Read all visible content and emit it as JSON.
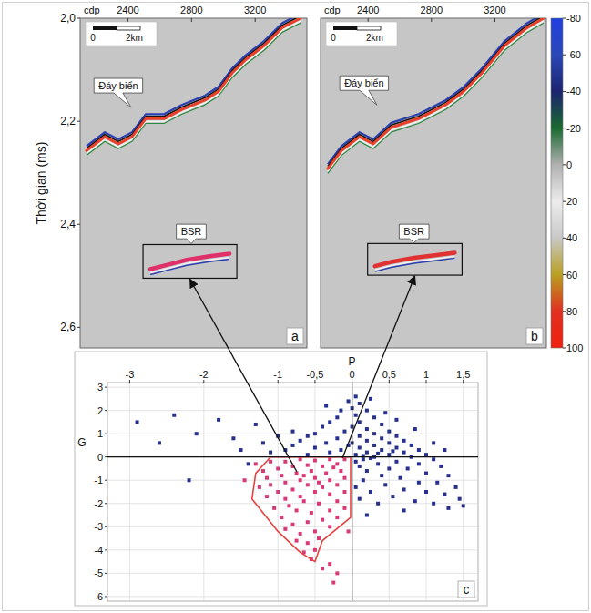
{
  "chart_data": [
    {
      "type": "seismic",
      "label": "a",
      "x_label": "cdp",
      "y_label": "Thời gian (ms)",
      "xlim": [
        2100,
        3525
      ],
      "xticks": [
        2400,
        2800,
        3200
      ],
      "ylim": [
        2.0,
        2.64
      ],
      "yticks": [
        {
          "value": 2.0,
          "label": "2,0"
        },
        {
          "value": 2.2,
          "label": "2,2"
        },
        {
          "value": 2.4,
          "label": "2,4"
        },
        {
          "value": 2.6,
          "label": "2,6"
        }
      ],
      "scale_bar": [
        "0",
        "2km"
      ],
      "seafloor": {
        "label": "Đáy biển",
        "label_x": 2340,
        "label_y": 2.138,
        "color": "#e8402a",
        "x": [
          2140,
          2255,
          2340,
          2426,
          2512,
          2627,
          2741,
          2884,
          2970,
          3056,
          3142,
          3256,
          3371,
          3485
        ],
        "values": [
          2.257,
          2.23,
          2.244,
          2.23,
          2.195,
          2.195,
          2.177,
          2.159,
          2.142,
          2.106,
          2.08,
          2.053,
          2.018,
          2.0
        ]
      },
      "bsr": {
        "label": "BSR",
        "label_x": 2798,
        "label_y": 2.421,
        "color": "#e0306a",
        "x": [
          2541,
          2655,
          2770,
          2913,
          3039
        ],
        "values": [
          2.487,
          2.478,
          2.469,
          2.462,
          2.457
        ]
      }
    },
    {
      "type": "seismic",
      "label": "b",
      "x_label": "cdp",
      "tick_labels": "x",
      "xlim": [
        2100,
        3525
      ],
      "xticks": [
        2400,
        2800,
        3200
      ],
      "ylim": [
        2.0,
        2.64
      ],
      "scale_bar": [
        "0",
        "2km"
      ],
      "seafloor": {
        "label": "Đáy biển",
        "label_x": 2375,
        "label_y": 2.133,
        "color": "#e8402a",
        "x": [
          2146,
          2232,
          2346,
          2432,
          2546,
          2718,
          2890,
          3004,
          3119,
          3262,
          3405,
          3508
        ],
        "values": [
          2.292,
          2.257,
          2.23,
          2.244,
          2.212,
          2.195,
          2.168,
          2.142,
          2.106,
          2.053,
          2.018,
          2.0
        ]
      },
      "bsr": {
        "label": "BSR",
        "label_x": 2690,
        "label_y": 2.421,
        "color": "#e03232",
        "x": [
          2443,
          2546,
          2690,
          2821,
          2947
        ],
        "values": [
          2.481,
          2.473,
          2.465,
          2.46,
          2.455
        ]
      },
      "colorbar": {
        "range": [
          -80,
          100
        ],
        "ticks": [
          -80,
          -60,
          -40,
          -20,
          0,
          20,
          40,
          60,
          80,
          100
        ],
        "colors": [
          "#2040e0",
          "#2a48b8",
          "#1c2470",
          "#1a6a30",
          "#b0b0b0",
          "#ececec",
          "#c8c8c8",
          "#b8a020",
          "#e03020",
          "#f02010"
        ]
      }
    },
    {
      "type": "scatter",
      "label": "c",
      "x_label": "P",
      "y_label": "G",
      "grid": true,
      "xlim": [
        -3.3,
        1.7
      ],
      "xticks": [
        -3,
        -2,
        -1,
        {
          "value": -0.5,
          "label": "-0,5"
        },
        0,
        {
          "value": 0.5,
          "label": "0,5"
        },
        1,
        {
          "value": 1.5,
          "label": "1,5"
        }
      ],
      "ylim": [
        -6.2,
        3.2
      ],
      "yticks": [
        3,
        2,
        1,
        0,
        -1,
        -2,
        -3,
        -4,
        -5,
        -6
      ],
      "series": [
        {
          "type": "scatter",
          "marker": "square",
          "color": "#27308f",
          "x": [
            0.05,
            -0.05,
            0.1,
            0,
            -0.15,
            0.2,
            0.05,
            -0.2,
            0.3,
            0.1,
            -0.3,
            0.4,
            0,
            -0.4,
            0.2,
            0.5,
            -0.1,
            -0.5,
            0.3,
            0.6,
            -0.6,
            0.1,
            -0.2,
            0.4,
            0.7,
            -0.7,
            0.2,
            -0.35,
            0.5,
            0,
            0.8,
            -0.8,
            0.3,
            -0.5,
            0.6,
            0.1,
            -0.15,
            0.9,
            0.4,
            -0.9,
            0.2,
            0.7,
            -0.3,
            0.05,
            1.0,
            0.5,
            -0.6,
            0.3,
            0.8,
            0.15,
            1.1,
            0.6,
            0.35,
            0.9,
            0.1,
            1.2,
            0.5,
            0.75,
            0.2,
            1.0,
            0.4,
            1.3,
            0.65,
            0.15,
            0.9,
            1.15,
            0.45,
            1.4,
            0.7,
            0.25,
            1.0,
            1.25,
            0.55,
            1.45,
            0.85,
            1.1,
            1.5,
            0.35,
            1.3,
            0.7,
            -1.3,
            -1.8,
            -2.4,
            -2.9,
            -2.1,
            -1.6,
            -1.2,
            -2.6,
            -1.5,
            -1.1,
            0.45,
            0.25,
            -0.35,
            0.6,
            0.85,
            -0.8,
            -1.0,
            1.1,
            1.25,
            0.05,
            0.25,
            -0.05,
            0.15,
            0.35,
            0.55,
            -2.2,
            -1.4,
            0.05,
            0.1,
            0.2
          ],
          "values": [
            2.6,
            2.4,
            2.3,
            2.1,
            2.0,
            2.0,
            1.8,
            1.7,
            1.7,
            1.5,
            1.5,
            1.4,
            1.3,
            1.3,
            1.2,
            1.1,
            1.1,
            1.0,
            1.0,
            0.9,
            0.9,
            0.9,
            0.8,
            0.8,
            0.7,
            0.7,
            0.7,
            0.6,
            0.6,
            0.6,
            0.5,
            0.5,
            0.5,
            0.4,
            0.4,
            0.4,
            0.3,
            0.3,
            0.3,
            0.3,
            0.2,
            0.2,
            0.2,
            0.1,
            0.1,
            0.1,
            0.1,
            0,
            0,
            -0.1,
            -0.1,
            -0.2,
            -0.3,
            -0.3,
            -0.4,
            -0.4,
            -0.5,
            -0.5,
            -0.6,
            -0.7,
            -0.8,
            -0.8,
            -0.9,
            -1.0,
            -1.1,
            -1.1,
            -1.2,
            -1.3,
            -1.4,
            -1.5,
            -1.5,
            -1.6,
            -1.7,
            -1.8,
            -1.9,
            -2.0,
            -2.1,
            -2.0,
            -2.2,
            -2.3,
            1.4,
            1.6,
            1.8,
            1.5,
            1.0,
            0.8,
            0.6,
            0.6,
            0.3,
            0.2,
            1.9,
            2.5,
            2.2,
            1.6,
            1.2,
            1.1,
            0.9,
            0.6,
            0.3,
            -0.2,
            -0.05,
            0.5,
            0.05,
            0.15,
            0.25,
            -1.0,
            -0.3,
            -1.3,
            -1.8,
            -2.5
          ]
        },
        {
          "type": "scatter",
          "marker": "square",
          "color": "#d83a78",
          "x": [
            -0.1,
            -0.3,
            -0.5,
            -0.7,
            -0.9,
            -1.1,
            -0.2,
            -0.4,
            -0.6,
            -0.8,
            -1.0,
            -1.2,
            -0.15,
            -0.35,
            -0.55,
            -0.75,
            -0.95,
            -1.15,
            -0.1,
            -0.3,
            -0.5,
            -0.7,
            -0.9,
            -1.1,
            -1.25,
            -0.2,
            -0.4,
            -0.6,
            -0.8,
            -1.0,
            -0.1,
            -0.3,
            -0.5,
            -0.7,
            -0.9,
            -1.15,
            -0.2,
            -0.45,
            -0.65,
            -0.85,
            -1.05,
            -0.1,
            -0.3,
            -0.55,
            -0.75,
            -0.95,
            -0.2,
            -0.4,
            -0.6,
            -0.8,
            -0.3,
            -0.5,
            -0.7,
            -0.9,
            -0.45,
            -0.6,
            -0.75,
            -0.5,
            -0.65,
            -0.55,
            -0.3,
            -0.2,
            -0.25,
            -0.4,
            -0.05,
            -1.45,
            -1.3,
            -0.25,
            -0.65,
            -0.45
          ],
          "values": [
            -0.1,
            -0.1,
            -0.15,
            -0.1,
            -0.2,
            -0.2,
            -0.3,
            -0.4,
            -0.35,
            -0.4,
            -0.5,
            -0.6,
            -0.6,
            -0.7,
            -0.6,
            -0.7,
            -0.8,
            -0.9,
            -0.9,
            -1.0,
            -0.9,
            -1.0,
            -1.1,
            -1.2,
            -1.3,
            -1.2,
            -1.3,
            -1.2,
            -1.4,
            -1.5,
            -1.5,
            -1.6,
            -1.5,
            -1.7,
            -1.8,
            -1.7,
            -1.9,
            -2.0,
            -1.9,
            -2.1,
            -2.2,
            -2.2,
            -2.3,
            -2.4,
            -2.3,
            -2.6,
            -2.6,
            -2.7,
            -2.8,
            -2.9,
            -3.0,
            -3.2,
            -3.3,
            -3.1,
            -3.5,
            -3.7,
            -3.6,
            -4.0,
            -4.1,
            -4.4,
            -4.6,
            -5.0,
            -5.4,
            -4.8,
            -3.2,
            -1.0,
            -0.3,
            -0.45,
            -0.8,
            -1.1
          ]
        },
        {
          "type": "polygon",
          "line_style": "solid",
          "color": "#e8423f",
          "x": [
            -1.1,
            -0.02,
            -0.02,
            -0.4,
            -0.5,
            -0.7,
            -1.0,
            -1.35,
            -1.3
          ],
          "values": [
            0,
            0,
            -2.6,
            -3.6,
            -4.5,
            -4.1,
            -3.2,
            -1.8,
            -0.7
          ]
        }
      ]
    }
  ]
}
